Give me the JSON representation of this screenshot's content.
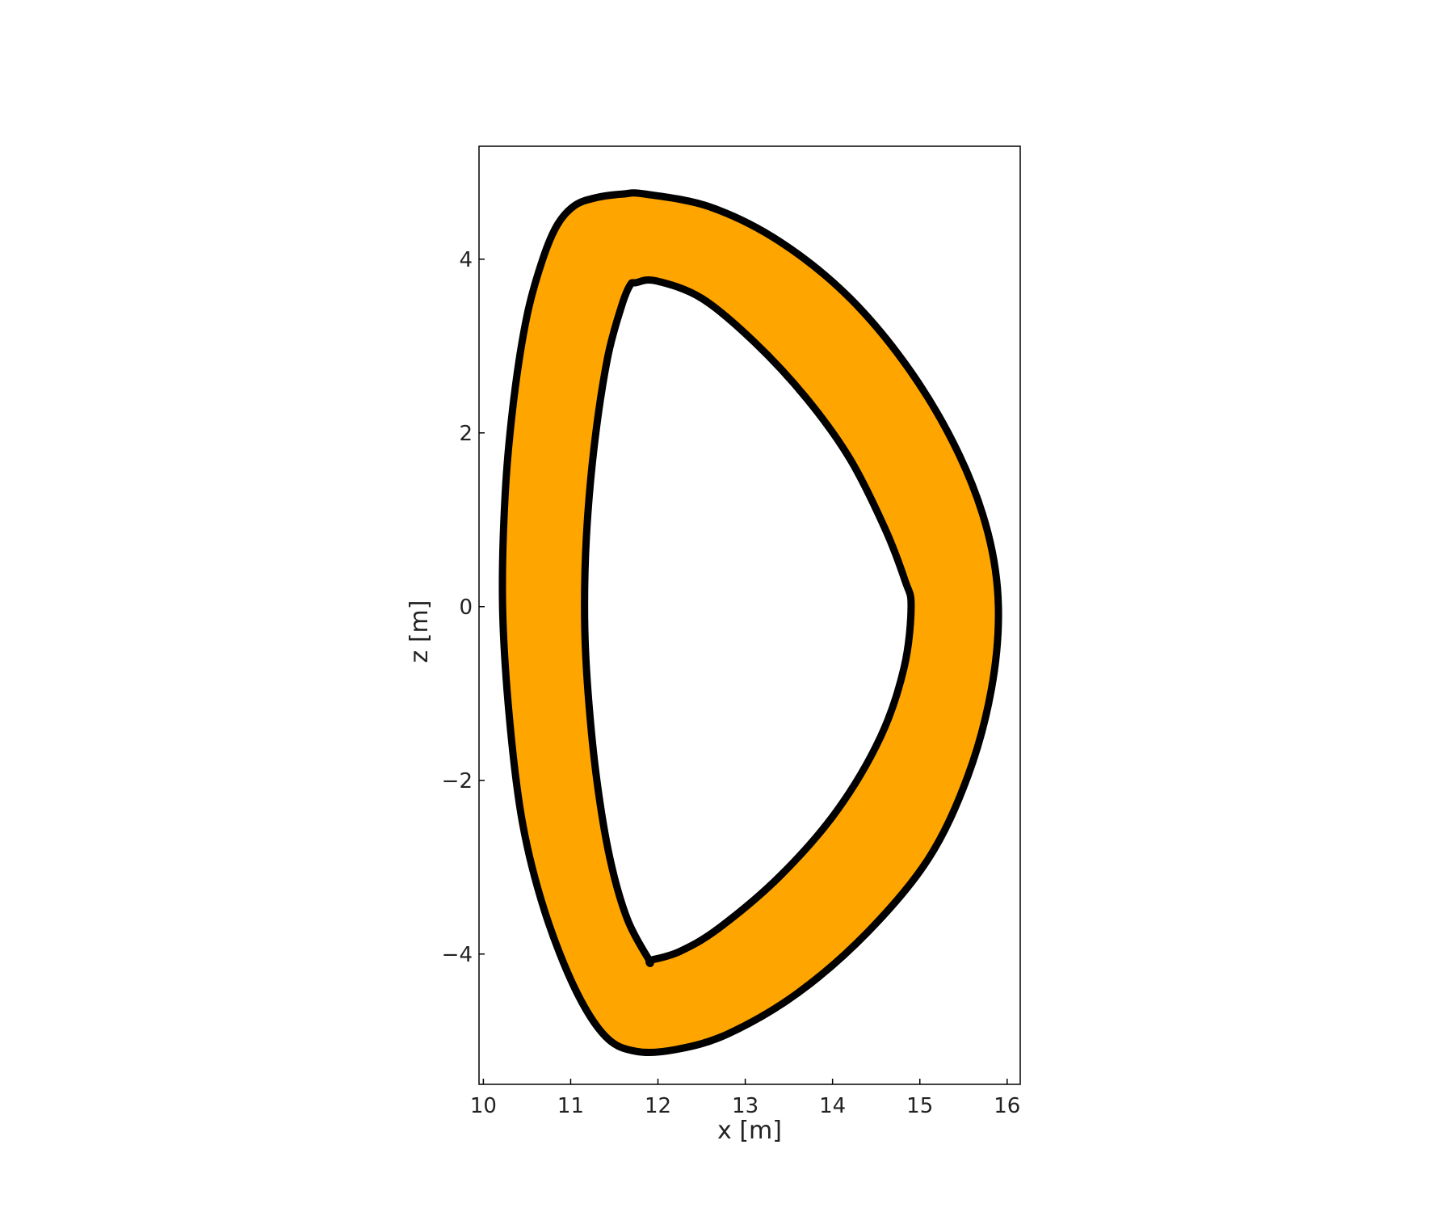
{
  "chart_data": {
    "type": "area",
    "title": "",
    "xlabel": "x [m]",
    "ylabel": "z [m]",
    "xlim": [
      9.95,
      16.15
    ],
    "ylim": [
      -5.5,
      5.3
    ],
    "xticks": [
      10,
      11,
      12,
      13,
      14,
      15,
      16
    ],
    "yticks": [
      -4,
      -2,
      0,
      2,
      4
    ],
    "ytick_labels": [
      "−4",
      "−2",
      "0",
      "2",
      "4"
    ],
    "grid": false,
    "legend": "none",
    "fill_color": "#FFA500",
    "edge_color": "#000000",
    "outer_boundary": {
      "x": [
        11.85,
        12.6,
        13.4,
        14.2,
        14.9,
        15.45,
        15.78,
        15.9,
        15.82,
        15.55,
        15.1,
        14.4,
        13.6,
        12.8,
        12.2,
        11.75,
        11.4,
        11.05,
        10.7,
        10.45,
        10.3,
        10.22,
        10.25,
        10.35,
        10.5,
        10.68,
        10.85,
        11.05,
        11.3,
        11.6,
        11.85
      ],
      "y": [
        4.75,
        4.6,
        4.2,
        3.55,
        2.7,
        1.75,
        0.85,
        0.0,
        -0.95,
        -1.95,
        -2.9,
        -3.75,
        -4.45,
        -4.92,
        -5.1,
        -5.12,
        -4.95,
        -4.4,
        -3.5,
        -2.5,
        -1.3,
        0.0,
        1.3,
        2.4,
        3.35,
        4.0,
        4.4,
        4.62,
        4.71,
        4.75,
        4.75
      ]
    },
    "inner_boundary": {
      "x": [
        11.75,
        11.98,
        12.5,
        13.1,
        13.7,
        14.2,
        14.6,
        14.83,
        14.9,
        14.82,
        14.55,
        14.05,
        13.4,
        12.7,
        12.25,
        11.92,
        11.9,
        11.65,
        11.45,
        11.3,
        11.2,
        11.16,
        11.18,
        11.27,
        11.42,
        11.58,
        11.68,
        11.75
      ],
      "y": [
        3.73,
        3.75,
        3.55,
        3.05,
        2.4,
        1.7,
        0.9,
        0.3,
        0.0,
        -0.7,
        -1.5,
        -2.35,
        -3.1,
        -3.7,
        -3.97,
        -4.07,
        -4.07,
        -3.6,
        -2.9,
        -2.0,
        -1.0,
        -0.15,
        0.8,
        1.85,
        2.85,
        3.45,
        3.7,
        3.73
      ]
    }
  }
}
